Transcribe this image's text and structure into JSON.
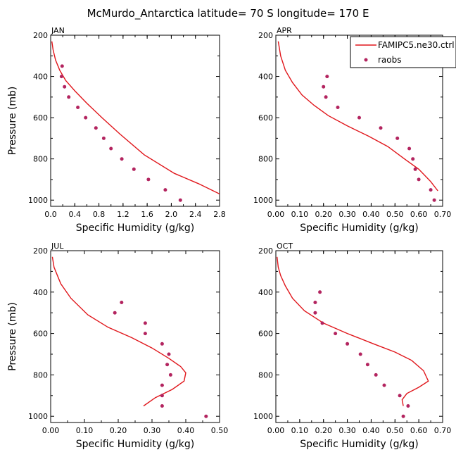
{
  "figure_title": "McMurdo_Antarctica  latitude= 70 S longitude= 170 E",
  "colors": {
    "model": "#e0161b",
    "raobs": "#b3245f",
    "axis": "#000000",
    "background": "#ffffff"
  },
  "legend": {
    "model_label": "FAMIPC5.ne30.ctrl",
    "obs_label": "raobs",
    "placement": "top-right (APR panel)"
  },
  "chart_data": [
    {
      "type": "line+scatter",
      "panel": "JAN",
      "title": "JAN",
      "xlabel": "Specific Humidity (g/kg)",
      "ylabel": "Pressure (mb)",
      "xlim": [
        0,
        2.8
      ],
      "ylim": [
        1030,
        200
      ],
      "xticks": [
        "0.0",
        "0.4",
        "0.8",
        "1.2",
        "1.6",
        "2.0",
        "2.4",
        "2.8"
      ],
      "yticks": [
        "200",
        "400",
        "600",
        "800",
        "1000"
      ],
      "series": [
        {
          "name": "FAMIPC5.ne30.ctrl",
          "kind": "line",
          "x": [
            0.02,
            0.04,
            0.08,
            0.15,
            0.25,
            0.4,
            0.6,
            0.85,
            1.15,
            1.55,
            2.05,
            2.45,
            2.8
          ],
          "y": [
            230,
            270,
            320,
            370,
            420,
            470,
            530,
            600,
            680,
            780,
            870,
            920,
            970
          ]
        },
        {
          "name": "raobs",
          "kind": "scatter",
          "x": [
            0.19,
            0.18,
            0.23,
            0.3,
            0.45,
            0.58,
            0.75,
            0.88,
            1.0,
            1.18,
            1.38,
            1.62,
            1.9,
            2.15
          ],
          "y": [
            350,
            400,
            450,
            500,
            550,
            600,
            650,
            700,
            750,
            800,
            850,
            900,
            950,
            1000
          ]
        }
      ]
    },
    {
      "type": "line+scatter",
      "panel": "APR",
      "title": "APR",
      "xlabel": "Specific Humidity (g/kg)",
      "ylabel": "",
      "xlim": [
        0,
        0.7
      ],
      "ylim": [
        1030,
        200
      ],
      "xticks": [
        "0.00",
        "0.10",
        "0.20",
        "0.30",
        "0.40",
        "0.50",
        "0.60",
        "0.70"
      ],
      "yticks": [
        "200",
        "400",
        "600",
        "800",
        "1000"
      ],
      "series": [
        {
          "name": "FAMIPC5.ne30.ctrl",
          "kind": "line",
          "x": [
            0.01,
            0.02,
            0.04,
            0.07,
            0.11,
            0.16,
            0.22,
            0.3,
            0.39,
            0.47,
            0.54,
            0.6,
            0.65,
            0.68
          ],
          "y": [
            230,
            300,
            370,
            430,
            490,
            540,
            590,
            640,
            690,
            740,
            800,
            850,
            910,
            955
          ]
        },
        {
          "name": "raobs",
          "kind": "scatter",
          "x": [
            0.215,
            0.2,
            0.21,
            0.26,
            0.35,
            0.44,
            0.51,
            0.56,
            0.575,
            0.585,
            0.6,
            0.65,
            0.665
          ],
          "y": [
            400,
            450,
            500,
            550,
            600,
            650,
            700,
            750,
            800,
            850,
            900,
            950,
            1000
          ]
        }
      ]
    },
    {
      "type": "line+scatter",
      "panel": "JUL",
      "title": "JUL",
      "xlabel": "Specific Humidity (g/kg)",
      "ylabel": "Pressure (mb)",
      "xlim": [
        0,
        0.5
      ],
      "ylim": [
        1030,
        200
      ],
      "xticks": [
        "0.00",
        "0.10",
        "0.20",
        "0.30",
        "0.40",
        "0.50"
      ],
      "yticks": [
        "200",
        "400",
        "600",
        "800",
        "1000"
      ],
      "series": [
        {
          "name": "FAMIPC5.ne30.ctrl",
          "kind": "line",
          "x": [
            0.005,
            0.01,
            0.02,
            0.03,
            0.06,
            0.11,
            0.17,
            0.24,
            0.3,
            0.35,
            0.385,
            0.4,
            0.395,
            0.36,
            0.31,
            0.275
          ],
          "y": [
            230,
            280,
            320,
            360,
            430,
            510,
            570,
            620,
            670,
            720,
            760,
            790,
            830,
            870,
            910,
            950
          ]
        },
        {
          "name": "raobs",
          "kind": "scatter",
          "x": [
            0.21,
            0.19,
            0.28,
            0.28,
            0.33,
            0.35,
            0.345,
            0.355,
            0.33,
            0.33,
            0.33,
            0.46
          ],
          "y": [
            450,
            500,
            550,
            600,
            650,
            700,
            750,
            800,
            850,
            900,
            950,
            1000
          ]
        }
      ]
    },
    {
      "type": "line+scatter",
      "panel": "OCT",
      "title": "OCT",
      "xlabel": "Specific Humidity (g/kg)",
      "ylabel": "",
      "xlim": [
        0,
        0.7
      ],
      "ylim": [
        1030,
        200
      ],
      "xticks": [
        "0.00",
        "0.10",
        "0.20",
        "0.30",
        "0.40",
        "0.50",
        "0.60",
        "0.70"
      ],
      "yticks": [
        "200",
        "400",
        "600",
        "800",
        "1000"
      ],
      "series": [
        {
          "name": "FAMIPC5.ne30.ctrl",
          "kind": "line",
          "x": [
            0.005,
            0.01,
            0.02,
            0.04,
            0.07,
            0.12,
            0.2,
            0.3,
            0.41,
            0.5,
            0.57,
            0.62,
            0.64,
            0.6,
            0.55,
            0.53,
            0.535
          ],
          "y": [
            230,
            280,
            320,
            370,
            430,
            490,
            550,
            600,
            650,
            690,
            730,
            780,
            830,
            860,
            890,
            920,
            950
          ]
        },
        {
          "name": "raobs",
          "kind": "scatter",
          "x": [
            0.185,
            0.165,
            0.165,
            0.195,
            0.25,
            0.3,
            0.355,
            0.385,
            0.42,
            0.455,
            0.52,
            0.555,
            0.535
          ],
          "y": [
            400,
            450,
            500,
            550,
            600,
            650,
            700,
            750,
            800,
            850,
            900,
            950,
            1000
          ]
        }
      ]
    }
  ]
}
